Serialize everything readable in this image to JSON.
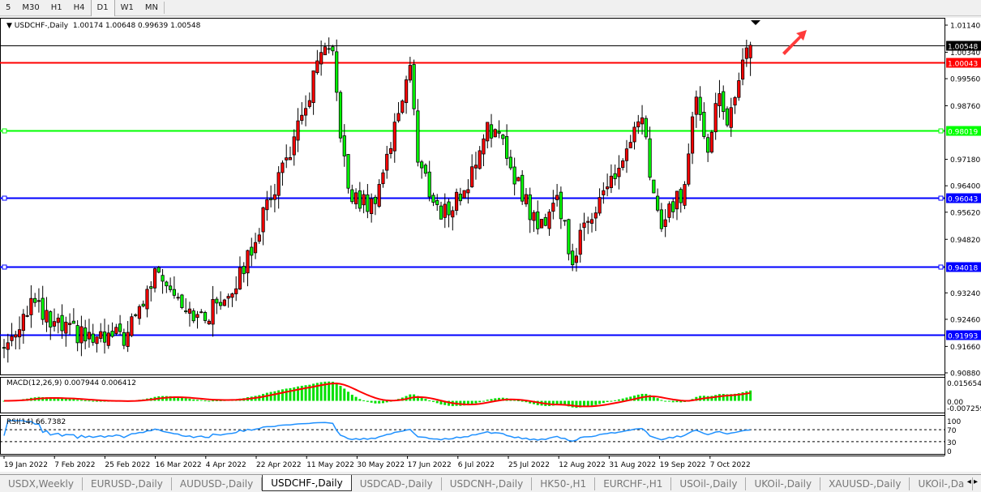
{
  "timeframes": [
    "5",
    "M30",
    "H1",
    "H4",
    "D1",
    "W1",
    "MN"
  ],
  "active_timeframe": "D1",
  "chart": {
    "title": "USDCHF-,Daily",
    "ohlc": "1.00174 1.00648 0.99639 1.00548"
  },
  "macd": {
    "label": "MACD(12,26,9) 0.007944 0.006412",
    "axis": [
      "0.015654",
      "0.00",
      "-0.007259"
    ]
  },
  "rsi": {
    "label": "RSI(14) 66.7382",
    "axis": [
      "100",
      "70",
      "30",
      "0"
    ]
  },
  "colors": {
    "bull": "#ff0000",
    "bear": "#00ff00",
    "support": "#0000ff",
    "resistance": "#ff0000",
    "mid": "#00ff00",
    "rsi": "#1e90ff",
    "arrow": "#ff3b3b"
  },
  "chart_data": {
    "type": "candlestick",
    "symbol": "USDCHF-",
    "timeframe": "Daily",
    "ylim": [
      0.9088,
      1.0114
    ],
    "y_ticks": [
      "1.01140",
      "1.00340",
      "0.99560",
      "0.98760",
      "0.97180",
      "0.96400",
      "0.95620",
      "0.94820",
      "0.93240",
      "0.92460",
      "0.91660",
      "0.90880"
    ],
    "x_ticks": [
      "19 Jan 2022",
      "7 Feb 2022",
      "25 Feb 2022",
      "16 Mar 2022",
      "4 Apr 2022",
      "22 Apr 2022",
      "11 May 2022",
      "30 May 2022",
      "17 Jun 2022",
      "6 Jul 2022",
      "25 Jul 2022",
      "12 Aug 2022",
      "31 Aug 2022",
      "19 Sep 2022",
      "7 Oct 2022"
    ],
    "horizontal_lines": [
      {
        "price": "1.00548",
        "color": "#000000",
        "kind": "current"
      },
      {
        "price": "1.00043",
        "color": "#ff0000"
      },
      {
        "price": "0.98019",
        "color": "#00ff00"
      },
      {
        "price": "0.96043",
        "color": "#0000ff"
      },
      {
        "price": "0.94018",
        "color": "#0000ff"
      },
      {
        "price": "0.91993",
        "color": "#0000ff"
      }
    ],
    "close_path": [
      [
        "2022-01-19",
        0.916
      ],
      [
        "2022-01-28",
        0.93
      ],
      [
        "2022-02-04",
        0.923
      ],
      [
        "2022-02-22",
        0.918
      ],
      [
        "2022-03-04",
        0.92
      ],
      [
        "2022-03-16",
        0.94
      ],
      [
        "2022-03-22",
        0.933
      ],
      [
        "2022-03-31",
        0.924
      ],
      [
        "2022-04-14",
        0.937
      ],
      [
        "2022-04-27",
        0.964
      ],
      [
        "2022-05-06",
        0.983
      ],
      [
        "2022-05-13",
        1.003
      ],
      [
        "2022-05-18",
        1.001
      ],
      [
        "2022-05-24",
        0.961
      ],
      [
        "2022-06-01",
        0.958
      ],
      [
        "2022-06-08",
        0.976
      ],
      [
        "2022-06-15",
        1.001
      ],
      [
        "2022-06-17",
        0.971
      ],
      [
        "2022-06-27",
        0.955
      ],
      [
        "2022-07-06",
        0.964
      ],
      [
        "2022-07-13",
        0.983
      ],
      [
        "2022-07-20",
        0.973
      ],
      [
        "2022-08-01",
        0.951
      ],
      [
        "2022-08-08",
        0.961
      ],
      [
        "2022-08-12",
        0.942
      ],
      [
        "2022-08-19",
        0.957
      ],
      [
        "2022-08-29",
        0.967
      ],
      [
        "2022-09-07",
        0.983
      ],
      [
        "2022-09-12",
        0.961
      ],
      [
        "2022-09-14",
        0.952
      ],
      [
        "2022-09-22",
        0.964
      ],
      [
        "2022-09-27",
        0.992
      ],
      [
        "2022-09-30",
        0.976
      ],
      [
        "2022-10-05",
        0.992
      ],
      [
        "2022-10-07",
        0.98
      ],
      [
        "2022-10-12",
        0.997
      ],
      [
        "2022-10-14",
        1.0017
      ]
    ],
    "last_bar": {
      "open": 1.00174,
      "high": 1.00648,
      "low": 0.99639,
      "close": 1.00548
    }
  },
  "tabs": [
    "USDX,Weekly",
    "EURUSD-,Daily",
    "AUDUSD-,Daily",
    "USDCHF-,Daily",
    "USDCAD-,Daily",
    "USDCNH-,Daily",
    "HK50-,H1",
    "EURCHF-,H1",
    "USOil-,Daily",
    "UKOil-,Daily",
    "XAUUSD-,Daily",
    "UKOil-,Da"
  ],
  "active_tab": "USDCHF-,Daily",
  "tab_arrows": "◂ ▸"
}
